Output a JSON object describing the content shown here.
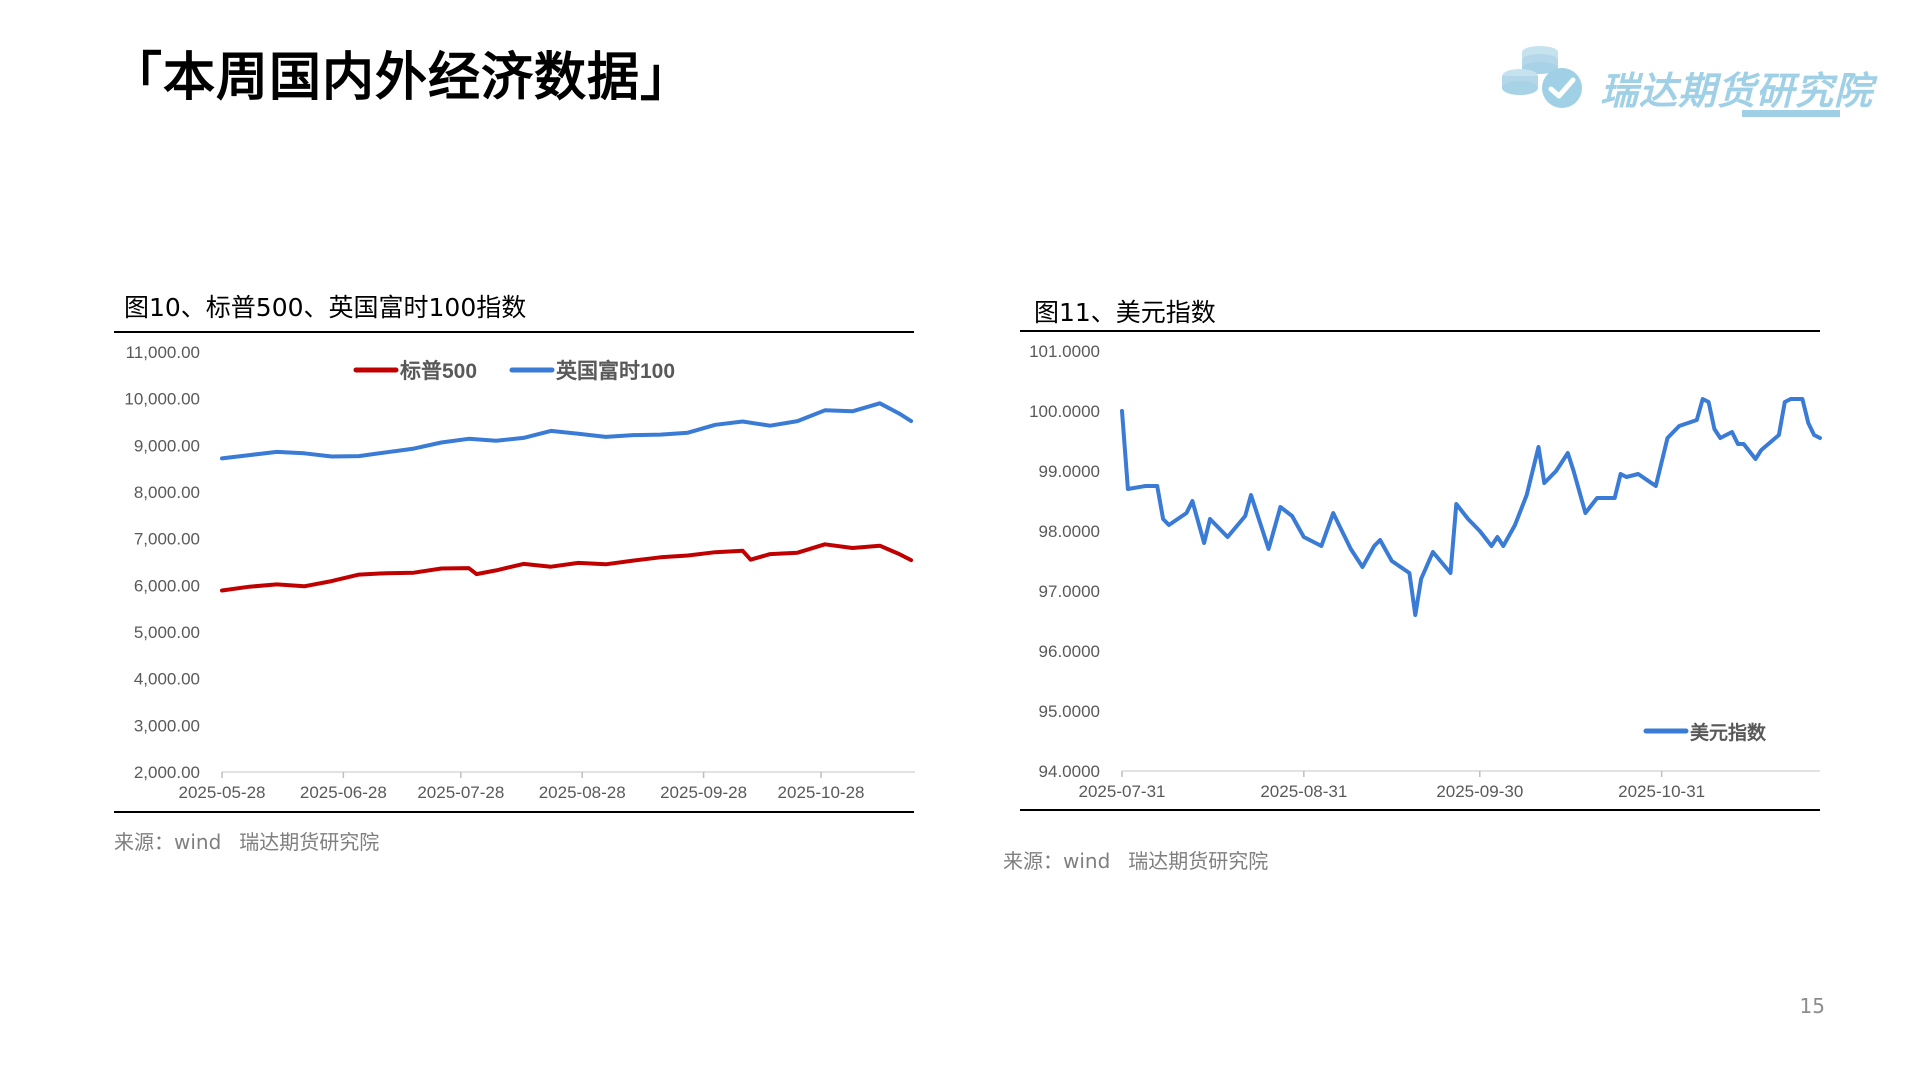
{
  "page": {
    "title": "「本周国内外经济数据」",
    "page_number": "15"
  },
  "logo": {
    "text": "瑞达期货研究院",
    "icon": "coin-stack-check-icon",
    "color": "#9fd0e6"
  },
  "charts": {
    "left": {
      "title": "图10、标普500、英国富时100指数",
      "source_label": "来源：wind",
      "source_org": "瑞达期货研究院"
    },
    "right": {
      "title": "图11、美元指数",
      "source_label": "来源：wind",
      "source_org": "瑞达期货研究院"
    }
  },
  "chart_data": [
    {
      "type": "line",
      "title": "图10、标普500、英国富时100指数",
      "xlabel": "",
      "ylabel": "",
      "ylim": [
        2000,
        11000
      ],
      "yticks": [
        "11,000.00",
        "10,000.00",
        "9,000.00",
        "8,000.00",
        "7,000.00",
        "6,000.00",
        "5,000.00",
        "4,000.00",
        "3,000.00",
        "2,000.00"
      ],
      "ytick_values": [
        11000,
        10000,
        9000,
        8000,
        7000,
        6000,
        5000,
        4000,
        3000,
        2000
      ],
      "xrange": [
        "2025-05-28",
        "2025-11-21"
      ],
      "xticks": [
        "2025-05-28",
        "2025-06-28",
        "2025-07-28",
        "2025-08-28",
        "2025-09-28",
        "2025-10-28"
      ],
      "grid": false,
      "legend_position": "top-center",
      "series": [
        {
          "name": "标普500",
          "color": "#c00000",
          "points": [
            [
              "2025-05-28",
              5890
            ],
            [
              "2025-06-04",
              5970
            ],
            [
              "2025-06-11",
              6020
            ],
            [
              "2025-06-18",
              5980
            ],
            [
              "2025-06-25",
              6090
            ],
            [
              "2025-07-02",
              6230
            ],
            [
              "2025-07-09",
              6260
            ],
            [
              "2025-07-16",
              6270
            ],
            [
              "2025-07-23",
              6360
            ],
            [
              "2025-07-30",
              6370
            ],
            [
              "2025-08-01",
              6240
            ],
            [
              "2025-08-06",
              6320
            ],
            [
              "2025-08-13",
              6460
            ],
            [
              "2025-08-20",
              6400
            ],
            [
              "2025-08-27",
              6480
            ],
            [
              "2025-09-03",
              6450
            ],
            [
              "2025-09-10",
              6530
            ],
            [
              "2025-09-17",
              6600
            ],
            [
              "2025-09-24",
              6640
            ],
            [
              "2025-10-01",
              6710
            ],
            [
              "2025-10-08",
              6740
            ],
            [
              "2025-10-10",
              6550
            ],
            [
              "2025-10-15",
              6670
            ],
            [
              "2025-10-22",
              6700
            ],
            [
              "2025-10-29",
              6880
            ],
            [
              "2025-11-05",
              6800
            ],
            [
              "2025-11-12",
              6850
            ],
            [
              "2025-11-17",
              6670
            ],
            [
              "2025-11-20",
              6540
            ]
          ]
        },
        {
          "name": "英国富时100",
          "color": "#3a7bd5",
          "points": [
            [
              "2025-05-28",
              8720
            ],
            [
              "2025-06-04",
              8790
            ],
            [
              "2025-06-11",
              8860
            ],
            [
              "2025-06-18",
              8830
            ],
            [
              "2025-06-25",
              8760
            ],
            [
              "2025-07-02",
              8770
            ],
            [
              "2025-07-09",
              8850
            ],
            [
              "2025-07-16",
              8930
            ],
            [
              "2025-07-23",
              9060
            ],
            [
              "2025-07-30",
              9140
            ],
            [
              "2025-08-06",
              9100
            ],
            [
              "2025-08-13",
              9160
            ],
            [
              "2025-08-20",
              9310
            ],
            [
              "2025-08-27",
              9250
            ],
            [
              "2025-09-03",
              9180
            ],
            [
              "2025-09-10",
              9220
            ],
            [
              "2025-09-17",
              9230
            ],
            [
              "2025-09-24",
              9270
            ],
            [
              "2025-10-01",
              9440
            ],
            [
              "2025-10-08",
              9510
            ],
            [
              "2025-10-15",
              9420
            ],
            [
              "2025-10-22",
              9520
            ],
            [
              "2025-10-29",
              9750
            ],
            [
              "2025-11-05",
              9730
            ],
            [
              "2025-11-12",
              9900
            ],
            [
              "2025-11-17",
              9680
            ],
            [
              "2025-11-20",
              9520
            ]
          ]
        }
      ]
    },
    {
      "type": "line",
      "title": "图11、美元指数",
      "xlabel": "",
      "ylabel": "",
      "ylim": [
        94,
        101
      ],
      "yticks": [
        "101.0000",
        "100.0000",
        "99.0000",
        "98.0000",
        "97.0000",
        "96.0000",
        "95.0000",
        "94.0000"
      ],
      "ytick_values": [
        101,
        100,
        99,
        98,
        97,
        96,
        95,
        94
      ],
      "xrange": [
        "2025-07-31",
        "2025-11-27"
      ],
      "xticks": [
        "2025-07-31",
        "2025-08-31",
        "2025-09-30",
        "2025-10-31"
      ],
      "grid": false,
      "legend_position": "bottom-right",
      "series": [
        {
          "name": "美元指数",
          "color": "#3a7bd5",
          "points": [
            [
              "2025-07-31",
              100.0
            ],
            [
              "2025-08-01",
              98.7
            ],
            [
              "2025-08-04",
              98.75
            ],
            [
              "2025-08-06",
              98.75
            ],
            [
              "2025-08-07",
              98.2
            ],
            [
              "2025-08-08",
              98.1
            ],
            [
              "2025-08-11",
              98.3
            ],
            [
              "2025-08-12",
              98.5
            ],
            [
              "2025-08-14",
              97.8
            ],
            [
              "2025-08-15",
              98.2
            ],
            [
              "2025-08-18",
              97.9
            ],
            [
              "2025-08-21",
              98.25
            ],
            [
              "2025-08-22",
              98.6
            ],
            [
              "2025-08-25",
              97.7
            ],
            [
              "2025-08-27",
              98.4
            ],
            [
              "2025-08-29",
              98.25
            ],
            [
              "2025-08-31",
              97.9
            ],
            [
              "2025-09-03",
              97.75
            ],
            [
              "2025-09-05",
              98.3
            ],
            [
              "2025-09-06",
              98.1
            ],
            [
              "2025-09-08",
              97.7
            ],
            [
              "2025-09-10",
              97.4
            ],
            [
              "2025-09-12",
              97.75
            ],
            [
              "2025-09-13",
              97.85
            ],
            [
              "2025-09-15",
              97.5
            ],
            [
              "2025-09-18",
              97.3
            ],
            [
              "2025-09-19",
              96.6
            ],
            [
              "2025-09-20",
              97.2
            ],
            [
              "2025-09-22",
              97.65
            ],
            [
              "2025-09-25",
              97.3
            ],
            [
              "2025-09-26",
              98.45
            ],
            [
              "2025-09-28",
              98.2
            ],
            [
              "2025-09-30",
              98.0
            ],
            [
              "2025-10-02",
              97.75
            ],
            [
              "2025-10-03",
              97.9
            ],
            [
              "2025-10-04",
              97.75
            ],
            [
              "2025-10-06",
              98.1
            ],
            [
              "2025-10-08",
              98.6
            ],
            [
              "2025-10-10",
              99.4
            ],
            [
              "2025-10-11",
              98.8
            ],
            [
              "2025-10-13",
              99.0
            ],
            [
              "2025-10-15",
              99.3
            ],
            [
              "2025-10-16",
              99.0
            ],
            [
              "2025-10-18",
              98.3
            ],
            [
              "2025-10-20",
              98.55
            ],
            [
              "2025-10-23",
              98.55
            ],
            [
              "2025-10-24",
              98.95
            ],
            [
              "2025-10-25",
              98.9
            ],
            [
              "2025-10-27",
              98.95
            ],
            [
              "2025-10-30",
              98.75
            ],
            [
              "2025-11-01",
              99.55
            ],
            [
              "2025-11-03",
              99.75
            ],
            [
              "2025-11-06",
              99.85
            ],
            [
              "2025-11-07",
              100.2
            ],
            [
              "2025-11-08",
              100.15
            ],
            [
              "2025-11-09",
              99.7
            ],
            [
              "2025-11-10",
              99.55
            ],
            [
              "2025-11-12",
              99.65
            ],
            [
              "2025-11-13",
              99.45
            ],
            [
              "2025-11-14",
              99.45
            ],
            [
              "2025-11-16",
              99.2
            ],
            [
              "2025-11-17",
              99.35
            ],
            [
              "2025-11-20",
              99.6
            ],
            [
              "2025-11-21",
              100.15
            ],
            [
              "2025-11-22",
              100.2
            ],
            [
              "2025-11-24",
              100.2
            ],
            [
              "2025-11-25",
              99.8
            ],
            [
              "2025-11-26",
              99.6
            ],
            [
              "2025-11-27",
              99.55
            ]
          ]
        }
      ]
    }
  ]
}
